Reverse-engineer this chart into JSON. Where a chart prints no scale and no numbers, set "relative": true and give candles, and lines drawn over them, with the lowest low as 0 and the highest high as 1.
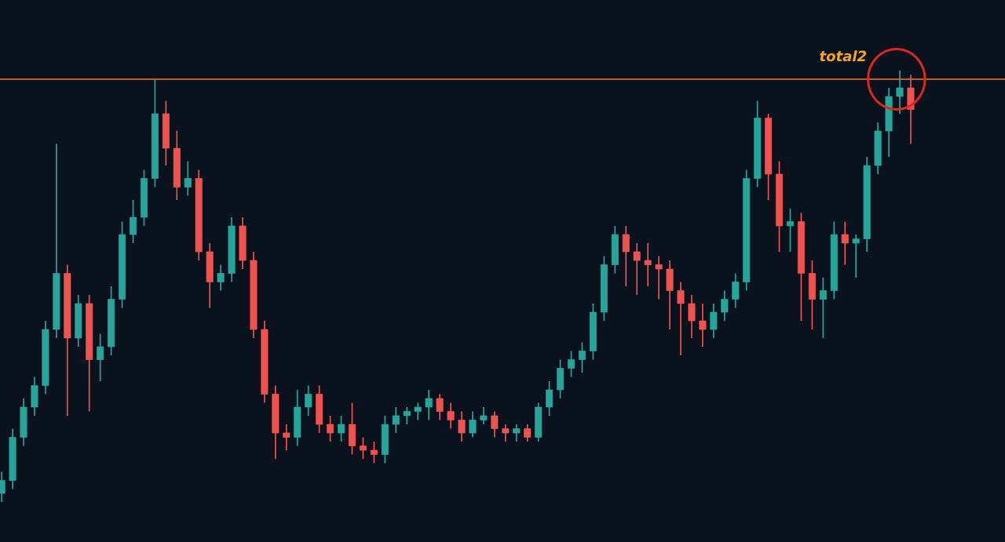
{
  "chart_data": {
    "type": "candlestick",
    "relative": true,
    "categories": [
      null,
      null,
      null,
      null,
      null,
      null,
      null,
      null,
      null,
      null,
      null,
      null,
      null,
      null,
      null,
      null,
      null,
      null,
      null,
      null,
      null,
      null,
      null,
      null,
      null,
      null,
      null,
      null,
      null,
      null,
      null,
      null,
      null,
      null,
      null,
      null,
      null,
      null,
      null,
      null,
      null,
      null,
      null,
      null,
      null,
      null,
      null,
      null,
      null,
      null,
      null,
      null,
      null,
      null,
      null,
      null,
      null,
      null,
      null,
      null,
      null,
      null,
      null,
      null,
      null,
      null,
      null,
      null,
      null,
      null,
      null,
      null,
      null,
      null,
      null,
      null,
      null,
      null,
      null,
      null,
      null,
      null,
      null,
      null
    ],
    "ohlc": [
      [
        0.02,
        0.07,
        0.0,
        0.05
      ],
      [
        0.05,
        0.17,
        0.03,
        0.15
      ],
      [
        0.15,
        0.24,
        0.13,
        0.22
      ],
      [
        0.22,
        0.29,
        0.2,
        0.27
      ],
      [
        0.27,
        0.42,
        0.25,
        0.4
      ],
      [
        0.4,
        0.83,
        0.38,
        0.53
      ],
      [
        0.53,
        0.55,
        0.2,
        0.38
      ],
      [
        0.38,
        0.48,
        0.36,
        0.46
      ],
      [
        0.46,
        0.48,
        0.21,
        0.33
      ],
      [
        0.33,
        0.39,
        0.28,
        0.36
      ],
      [
        0.36,
        0.5,
        0.34,
        0.47
      ],
      [
        0.47,
        0.65,
        0.45,
        0.62
      ],
      [
        0.62,
        0.7,
        0.6,
        0.66
      ],
      [
        0.66,
        0.77,
        0.64,
        0.75
      ],
      [
        0.75,
        0.98,
        0.73,
        0.9
      ],
      [
        0.9,
        0.93,
        0.78,
        0.82
      ],
      [
        0.82,
        0.86,
        0.7,
        0.73
      ],
      [
        0.73,
        0.79,
        0.71,
        0.75
      ],
      [
        0.75,
        0.77,
        0.56,
        0.58
      ],
      [
        0.58,
        0.6,
        0.45,
        0.51
      ],
      [
        0.51,
        0.55,
        0.49,
        0.53
      ],
      [
        0.53,
        0.66,
        0.51,
        0.64
      ],
      [
        0.64,
        0.66,
        0.54,
        0.56
      ],
      [
        0.56,
        0.58,
        0.38,
        0.4
      ],
      [
        0.4,
        0.42,
        0.23,
        0.25
      ],
      [
        0.25,
        0.27,
        0.1,
        0.16
      ],
      [
        0.16,
        0.18,
        0.12,
        0.15
      ],
      [
        0.15,
        0.26,
        0.13,
        0.22
      ],
      [
        0.22,
        0.27,
        0.2,
        0.25
      ],
      [
        0.25,
        0.27,
        0.16,
        0.18
      ],
      [
        0.18,
        0.2,
        0.14,
        0.16
      ],
      [
        0.16,
        0.2,
        0.14,
        0.18
      ],
      [
        0.18,
        0.23,
        0.11,
        0.13
      ],
      [
        0.13,
        0.15,
        0.1,
        0.12
      ],
      [
        0.12,
        0.14,
        0.09,
        0.11
      ],
      [
        0.11,
        0.2,
        0.09,
        0.18
      ],
      [
        0.18,
        0.22,
        0.16,
        0.2
      ],
      [
        0.2,
        0.22,
        0.18,
        0.21
      ],
      [
        0.21,
        0.23,
        0.19,
        0.22
      ],
      [
        0.22,
        0.26,
        0.19,
        0.24
      ],
      [
        0.24,
        0.25,
        0.19,
        0.21
      ],
      [
        0.21,
        0.23,
        0.17,
        0.19
      ],
      [
        0.19,
        0.21,
        0.14,
        0.16
      ],
      [
        0.16,
        0.21,
        0.15,
        0.19
      ],
      [
        0.19,
        0.22,
        0.18,
        0.2
      ],
      [
        0.2,
        0.21,
        0.15,
        0.17
      ],
      [
        0.17,
        0.18,
        0.14,
        0.16
      ],
      [
        0.16,
        0.18,
        0.14,
        0.17
      ],
      [
        0.17,
        0.18,
        0.14,
        0.15
      ],
      [
        0.15,
        0.23,
        0.14,
        0.22
      ],
      [
        0.22,
        0.28,
        0.2,
        0.26
      ],
      [
        0.26,
        0.33,
        0.24,
        0.31
      ],
      [
        0.31,
        0.35,
        0.29,
        0.33
      ],
      [
        0.33,
        0.37,
        0.3,
        0.35
      ],
      [
        0.35,
        0.46,
        0.33,
        0.44
      ],
      [
        0.44,
        0.57,
        0.42,
        0.55
      ],
      [
        0.55,
        0.64,
        0.53,
        0.62
      ],
      [
        0.62,
        0.64,
        0.5,
        0.58
      ],
      [
        0.58,
        0.6,
        0.48,
        0.56
      ],
      [
        0.56,
        0.6,
        0.5,
        0.55
      ],
      [
        0.55,
        0.57,
        0.47,
        0.54
      ],
      [
        0.54,
        0.56,
        0.4,
        0.49
      ],
      [
        0.49,
        0.51,
        0.34,
        0.46
      ],
      [
        0.46,
        0.48,
        0.38,
        0.42
      ],
      [
        0.42,
        0.46,
        0.36,
        0.4
      ],
      [
        0.4,
        0.46,
        0.38,
        0.44
      ],
      [
        0.44,
        0.49,
        0.42,
        0.47
      ],
      [
        0.47,
        0.53,
        0.45,
        0.51
      ],
      [
        0.51,
        0.77,
        0.49,
        0.75
      ],
      [
        0.75,
        0.93,
        0.73,
        0.89
      ],
      [
        0.89,
        0.9,
        0.7,
        0.76
      ],
      [
        0.76,
        0.79,
        0.58,
        0.64
      ],
      [
        0.64,
        0.68,
        0.58,
        0.65
      ],
      [
        0.65,
        0.67,
        0.42,
        0.53
      ],
      [
        0.53,
        0.56,
        0.4,
        0.47
      ],
      [
        0.47,
        0.52,
        0.38,
        0.49
      ],
      [
        0.49,
        0.65,
        0.47,
        0.62
      ],
      [
        0.62,
        0.65,
        0.55,
        0.6
      ],
      [
        0.6,
        0.62,
        0.52,
        0.61
      ],
      [
        0.61,
        0.8,
        0.58,
        0.78
      ],
      [
        0.78,
        0.88,
        0.76,
        0.86
      ],
      [
        0.86,
        0.96,
        0.8,
        0.94
      ],
      [
        0.94,
        1.0,
        0.9,
        0.96
      ],
      [
        0.96,
        0.99,
        0.83,
        0.91
      ]
    ],
    "colors": [
      "#26a69a",
      "#26a69a",
      "#26a69a",
      "#26a69a",
      "#26a69a",
      "#26a69a",
      "#ef5350",
      "#26a69a",
      "#ef5350",
      "#26a69a",
      "#26a69a",
      "#26a69a",
      "#26a69a",
      "#26a69a",
      "#26a69a",
      "#ef5350",
      "#ef5350",
      "#26a69a",
      "#ef5350",
      "#ef5350",
      "#26a69a",
      "#26a69a",
      "#ef5350",
      "#ef5350",
      "#ef5350",
      "#ef5350",
      "#ef5350",
      "#26a69a",
      "#26a69a",
      "#ef5350",
      "#ef5350",
      "#26a69a",
      "#ef5350",
      "#ef5350",
      "#ef5350",
      "#26a69a",
      "#26a69a",
      "#26a69a",
      "#26a69a",
      "#26a69a",
      "#ef5350",
      "#ef5350",
      "#ef5350",
      "#26a69a",
      "#26a69a",
      "#ef5350",
      "#ef5350",
      "#26a69a",
      "#ef5350",
      "#26a69a",
      "#26a69a",
      "#26a69a",
      "#26a69a",
      "#26a69a",
      "#26a69a",
      "#26a69a",
      "#26a69a",
      "#ef5350",
      "#ef5350",
      "#ef5350",
      "#ef5350",
      "#ef5350",
      "#ef5350",
      "#ef5350",
      "#ef5350",
      "#26a69a",
      "#26a69a",
      "#26a69a",
      "#26a69a",
      "#26a69a",
      "#ef5350",
      "#ef5350",
      "#26a69a",
      "#ef5350",
      "#ef5350",
      "#26a69a",
      "#26a69a",
      "#ef5350",
      "#26a69a",
      "#26a69a",
      "#26a69a",
      "#26a69a",
      "#26a69a",
      "#ef5350"
    ],
    "ref_lines": [
      {
        "axis": "y",
        "value": 0.98,
        "label": "total2",
        "color": "#f57c24"
      }
    ]
  }
}
